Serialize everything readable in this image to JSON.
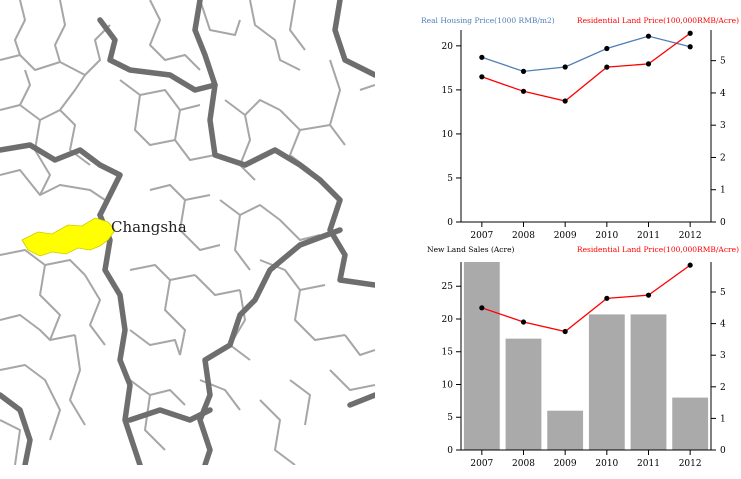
{
  "map": {
    "city_label": "Changsha",
    "highlight_color": "#ffff00",
    "district_border_color": "#a6a6a6",
    "province_border_color": "#6e6e6e"
  },
  "chart_data": [
    {
      "type": "line",
      "x": [
        "2007",
        "2008",
        "2009",
        "2010",
        "2011",
        "2012"
      ],
      "series": [
        {
          "name": "Real Housing Price(1000 RMB/m2)",
          "axis": "left",
          "color": "#4f7fb8",
          "values": [
            18.7,
            17.1,
            17.6,
            19.7,
            21.1,
            19.9
          ]
        },
        {
          "name": "Residential Land Price(100,000RMB/Acre)",
          "axis": "right",
          "color": "#ff0000",
          "values": [
            4.5,
            4.05,
            3.75,
            4.8,
            4.9,
            5.85
          ]
        }
      ],
      "left_ylim": [
        0,
        21.8
      ],
      "left_yticks": [
        0,
        5,
        10,
        15,
        20
      ],
      "right_ylim": [
        0,
        5.95
      ],
      "right_yticks": [
        0,
        1,
        2,
        3,
        4,
        5
      ],
      "left_title": "Real Housing Price(1000 RMB/m2)",
      "right_title": "Residential Land Price(100,000RMB/Acre)"
    },
    {
      "type": "bar",
      "categories": [
        "2007",
        "2008",
        "2009",
        "2010",
        "2011",
        "2012"
      ],
      "series": [
        {
          "name": "New Land Sales (Acre)",
          "axis": "left",
          "color": "#aaaaaa",
          "values": [
            28.7,
            17,
            6,
            20.7,
            20.7,
            8
          ]
        },
        {
          "name": "Residential Land Price(100,000RMB/Acre)",
          "axis": "right",
          "color": "#ff0000",
          "type": "line",
          "values": [
            4.5,
            4.05,
            3.75,
            4.8,
            4.9,
            5.85
          ]
        }
      ],
      "left_ylim": [
        0,
        28.7
      ],
      "left_yticks": [
        0,
        5,
        10,
        15,
        20,
        25
      ],
      "right_ylim": [
        0,
        5.95
      ],
      "right_yticks": [
        0,
        1,
        2,
        3,
        4,
        5
      ],
      "left_title": "New Land Sales (Acre)",
      "right_title": "Residential Land Price(100,000RMB/Acre)"
    }
  ]
}
